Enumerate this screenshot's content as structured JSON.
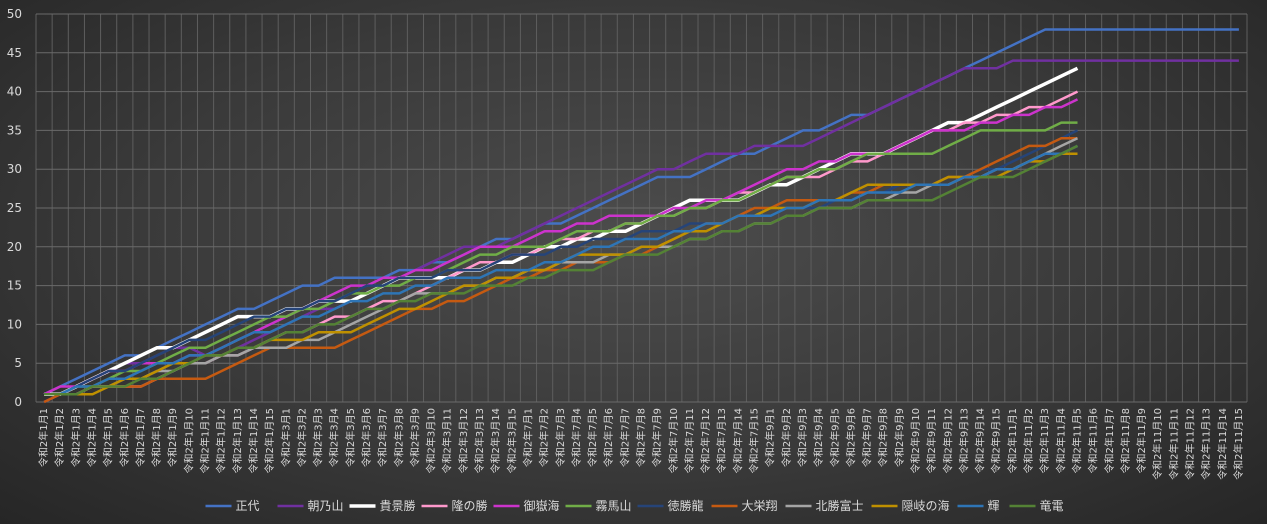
{
  "chart_data": {
    "type": "line",
    "title": "",
    "xlabel": "",
    "ylabel": "",
    "ylim": [
      0,
      50
    ],
    "yticks": [
      0,
      5,
      10,
      15,
      20,
      25,
      30,
      35,
      40,
      45,
      50
    ],
    "grid": true,
    "legend_position": "bottom",
    "categories": [
      "令和2年1月1",
      "令和2年1月2",
      "令和2年1月3",
      "令和2年1月4",
      "令和2年1月5",
      "令和2年1月6",
      "令和2年1月7",
      "令和2年1月8",
      "令和2年1月9",
      "令和2年1月10",
      "令和2年1月11",
      "令和2年1月12",
      "令和2年1月13",
      "令和2年1月14",
      "令和2年1月15",
      "令和2年3月1",
      "令和2年3月2",
      "令和2年3月3",
      "令和2年3月4",
      "令和2年3月5",
      "令和2年3月6",
      "令和2年3月7",
      "令和2年3月8",
      "令和2年3月9",
      "令和2年3月10",
      "令和2年3月11",
      "令和2年3月12",
      "令和2年3月13",
      "令和2年3月14",
      "令和2年3月15",
      "令和2年7月1",
      "令和2年7月2",
      "令和2年7月3",
      "令和2年7月4",
      "令和2年7月5",
      "令和2年7月6",
      "令和2年7月7",
      "令和2年7月8",
      "令和2年7月9",
      "令和2年7月10",
      "令和2年7月11",
      "令和2年7月12",
      "令和2年7月13",
      "令和2年7月14",
      "令和2年7月15",
      "令和2年9月1",
      "令和2年9月2",
      "令和2年9月3",
      "令和2年9月4",
      "令和2年9月5",
      "令和2年9月6",
      "令和2年9月7",
      "令和2年9月8",
      "令和2年9月9",
      "令和2年9月10",
      "令和2年9月11",
      "令和2年9月12",
      "令和2年9月13",
      "令和2年9月14",
      "令和2年9月15",
      "令和2年11月1",
      "令和2年11月2",
      "令和2年11月3",
      "令和2年11月4",
      "令和2年11月5",
      "令和2年11月6",
      "令和2年11月7",
      "令和2年11月8",
      "令和2年11月9",
      "令和2年11月10",
      "令和2年11月11",
      "令和2年11月12",
      "令和2年11月13",
      "令和2年11月14",
      "令和2年11月15"
    ],
    "series": [
      {
        "name": "正代",
        "color": "#4472c4",
        "values": [
          1,
          2,
          3,
          4,
          5,
          6,
          6,
          7,
          8,
          9,
          10,
          11,
          12,
          12,
          13,
          14,
          15,
          15,
          16,
          16,
          16,
          16,
          17,
          17,
          18,
          18,
          19,
          20,
          21,
          21,
          22,
          23,
          23,
          24,
          25,
          26,
          27,
          28,
          29,
          29,
          29,
          30,
          31,
          32,
          32,
          33,
          34,
          35,
          35,
          36,
          37,
          37,
          38,
          39,
          40,
          41,
          42,
          43,
          44,
          45,
          46,
          47,
          48,
          48,
          48,
          48,
          48,
          48,
          48,
          48,
          48,
          48,
          48,
          48,
          48
        ]
      },
      {
        "name": "朝乃山",
        "color": "#7030a0",
        "values": [
          0,
          1,
          2,
          3,
          4,
          5,
          5,
          6,
          7,
          7,
          6,
          6,
          7,
          8,
          9,
          10,
          11,
          12,
          12,
          13,
          14,
          15,
          16,
          17,
          18,
          19,
          20,
          20,
          20,
          21,
          22,
          23,
          24,
          25,
          26,
          27,
          28,
          29,
          30,
          30,
          31,
          32,
          32,
          32,
          33,
          33,
          33,
          33,
          34,
          35,
          36,
          37,
          38,
          39,
          40,
          41,
          42,
          43,
          43,
          43,
          44,
          44,
          44,
          44,
          44,
          44,
          44,
          44,
          44,
          44,
          44,
          44,
          44,
          44,
          44
        ]
      },
      {
        "name": "貴景勝",
        "color": "#ffffff",
        "values": [
          1,
          1,
          2,
          3,
          4,
          5,
          6,
          7,
          7,
          8,
          9,
          10,
          11,
          11,
          11,
          12,
          12,
          13,
          13,
          13,
          14,
          15,
          16,
          16,
          16,
          16,
          17,
          17,
          18,
          18,
          19,
          20,
          20,
          21,
          21,
          22,
          22,
          23,
          24,
          25,
          26,
          26,
          26,
          26,
          27,
          28,
          28,
          29,
          30,
          31,
          32,
          32,
          32,
          33,
          34,
          35,
          36,
          36,
          37,
          38,
          39,
          40,
          41,
          42,
          43,
          null,
          null,
          null,
          null,
          null,
          null,
          null,
          null,
          null,
          null
        ]
      },
      {
        "name": "隆の勝",
        "color": "#ff99cc",
        "values": [
          1,
          1,
          1,
          2,
          2,
          2,
          2,
          3,
          4,
          5,
          5,
          6,
          6,
          7,
          8,
          9,
          9,
          10,
          11,
          11,
          12,
          13,
          13,
          14,
          15,
          16,
          17,
          18,
          18,
          19,
          19,
          20,
          21,
          21,
          22,
          22,
          23,
          23,
          24,
          24,
          25,
          25,
          26,
          27,
          27,
          28,
          29,
          29,
          29,
          30,
          31,
          31,
          32,
          33,
          34,
          35,
          35,
          36,
          36,
          37,
          37,
          38,
          38,
          39,
          40,
          null,
          null,
          null,
          null,
          null,
          null,
          null,
          null,
          null,
          null
        ]
      },
      {
        "name": "御嶽海",
        "color": "#cc33cc",
        "values": [
          1,
          2,
          2,
          3,
          4,
          4,
          5,
          5,
          5,
          6,
          6,
          7,
          8,
          9,
          10,
          11,
          12,
          13,
          14,
          15,
          15,
          16,
          16,
          17,
          17,
          18,
          19,
          20,
          20,
          20,
          21,
          22,
          22,
          23,
          23,
          24,
          24,
          24,
          24,
          25,
          25,
          26,
          26,
          27,
          28,
          29,
          30,
          30,
          31,
          31,
          32,
          32,
          32,
          33,
          34,
          35,
          35,
          35,
          36,
          36,
          37,
          37,
          38,
          38,
          39,
          null,
          null,
          null,
          null,
          null,
          null,
          null,
          null,
          null,
          null
        ]
      },
      {
        "name": "霧馬山",
        "color": "#70ad47",
        "values": [
          1,
          1,
          2,
          2,
          3,
          4,
          4,
          5,
          6,
          7,
          7,
          8,
          9,
          10,
          11,
          11,
          12,
          12,
          13,
          14,
          14,
          15,
          15,
          16,
          16,
          17,
          18,
          19,
          19,
          20,
          20,
          20,
          21,
          22,
          22,
          22,
          23,
          23,
          24,
          24,
          25,
          25,
          26,
          26,
          27,
          28,
          29,
          29,
          30,
          30,
          31,
          32,
          32,
          32,
          32,
          32,
          33,
          34,
          35,
          35,
          35,
          35,
          35,
          36,
          36,
          null,
          null,
          null,
          null,
          null,
          null,
          null,
          null,
          null,
          null
        ]
      },
      {
        "name": "徳勝龍",
        "color": "#264478",
        "values": [
          1,
          1,
          2,
          3,
          4,
          4,
          5,
          6,
          7,
          8,
          8,
          9,
          10,
          11,
          11,
          12,
          12,
          13,
          13,
          14,
          15,
          15,
          16,
          16,
          16,
          17,
          17,
          17,
          18,
          19,
          19,
          19,
          20,
          20,
          21,
          21,
          21,
          22,
          22,
          22,
          23,
          23,
          23,
          24,
          24,
          24,
          25,
          25,
          25,
          26,
          26,
          27,
          27,
          28,
          28,
          28,
          29,
          29,
          30,
          30,
          31,
          32,
          33,
          34,
          35,
          null,
          null,
          null,
          null,
          null,
          null,
          null,
          null,
          null,
          null
        ]
      },
      {
        "name": "大栄翔",
        "color": "#c55a11",
        "values": [
          0,
          1,
          1,
          2,
          2,
          2,
          2,
          3,
          3,
          3,
          3,
          4,
          5,
          6,
          7,
          7,
          7,
          7,
          7,
          8,
          9,
          10,
          11,
          12,
          12,
          13,
          13,
          14,
          15,
          16,
          16,
          17,
          17,
          18,
          18,
          18,
          19,
          19,
          20,
          21,
          22,
          23,
          23,
          24,
          25,
          25,
          26,
          26,
          26,
          26,
          27,
          27,
          28,
          28,
          28,
          28,
          29,
          29,
          30,
          31,
          32,
          33,
          33,
          34,
          34,
          null,
          null,
          null,
          null,
          null,
          null,
          null,
          null,
          null,
          null
        ]
      },
      {
        "name": "北勝富士",
        "color": "#a5a5a5",
        "values": [
          1,
          1,
          1,
          2,
          2,
          3,
          3,
          4,
          4,
          5,
          5,
          6,
          6,
          7,
          7,
          7,
          8,
          8,
          9,
          10,
          11,
          12,
          13,
          14,
          14,
          14,
          15,
          15,
          16,
          16,
          17,
          17,
          18,
          18,
          18,
          19,
          19,
          20,
          20,
          20,
          21,
          21,
          22,
          22,
          23,
          23,
          24,
          24,
          25,
          25,
          25,
          26,
          26,
          27,
          27,
          28,
          28,
          29,
          29,
          30,
          30,
          31,
          32,
          33,
          34,
          null,
          null,
          null,
          null,
          null,
          null,
          null,
          null,
          null,
          null
        ]
      },
      {
        "name": "隠岐の海",
        "color": "#bf9000",
        "values": [
          1,
          1,
          1,
          1,
          2,
          3,
          3,
          4,
          5,
          5,
          6,
          6,
          7,
          7,
          8,
          8,
          8,
          9,
          9,
          9,
          10,
          11,
          12,
          12,
          13,
          14,
          15,
          15,
          16,
          16,
          17,
          17,
          18,
          19,
          19,
          19,
          19,
          20,
          20,
          21,
          22,
          22,
          23,
          24,
          24,
          25,
          25,
          25,
          26,
          26,
          27,
          28,
          28,
          28,
          28,
          28,
          29,
          29,
          29,
          29,
          30,
          31,
          31,
          32,
          32,
          null,
          null,
          null,
          null,
          null,
          null,
          null,
          null,
          null,
          null
        ]
      },
      {
        "name": "輝",
        "color": "#2e75b6",
        "values": [
          1,
          1,
          2,
          2,
          3,
          3,
          4,
          5,
          5,
          6,
          6,
          7,
          8,
          9,
          9,
          10,
          11,
          11,
          12,
          13,
          13,
          14,
          14,
          15,
          15,
          16,
          16,
          16,
          17,
          17,
          17,
          18,
          18,
          19,
          20,
          20,
          21,
          21,
          21,
          22,
          22,
          23,
          23,
          24,
          24,
          24,
          25,
          25,
          26,
          26,
          26,
          27,
          27,
          27,
          28,
          28,
          28,
          29,
          29,
          30,
          30,
          31,
          32,
          32,
          33,
          null,
          null,
          null,
          null,
          null,
          null,
          null,
          null,
          null,
          null
        ]
      },
      {
        "name": "竜電",
        "color": "#548235",
        "values": [
          1,
          1,
          1,
          2,
          2,
          2,
          3,
          3,
          4,
          5,
          6,
          6,
          7,
          7,
          8,
          9,
          9,
          10,
          10,
          11,
          12,
          12,
          13,
          13,
          14,
          14,
          14,
          15,
          15,
          15,
          16,
          16,
          17,
          17,
          17,
          18,
          19,
          19,
          19,
          20,
          21,
          21,
          22,
          22,
          23,
          23,
          24,
          24,
          25,
          25,
          25,
          26,
          26,
          26,
          26,
          26,
          27,
          28,
          29,
          29,
          29,
          30,
          31,
          32,
          33,
          null,
          null,
          null,
          null,
          null,
          null,
          null,
          null,
          null,
          null
        ]
      }
    ]
  }
}
